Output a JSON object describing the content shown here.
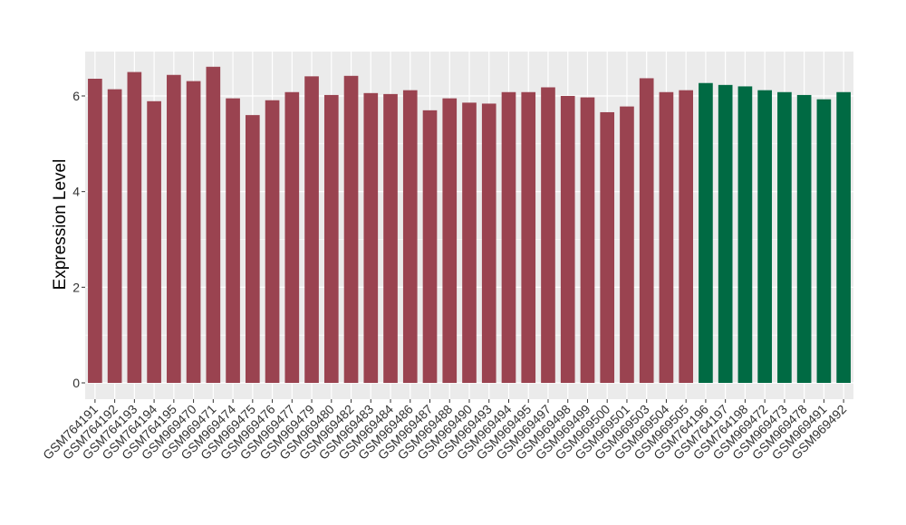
{
  "chart_data": {
    "type": "bar",
    "title": "",
    "xlabel": "",
    "ylabel": "Expression Level",
    "ylim": [
      0,
      6.9
    ],
    "yticks": [
      0,
      2,
      4,
      6
    ],
    "grid": true,
    "legend": "none",
    "panel_color": "#ebebeb",
    "grid_color": "#ffffff",
    "categories": [
      "GSM764191",
      "GSM764192",
      "GSM764193",
      "GSM764194",
      "GSM764195",
      "GSM969470",
      "GSM969471",
      "GSM969474",
      "GSM969475",
      "GSM969476",
      "GSM969477",
      "GSM969479",
      "GSM969480",
      "GSM969482",
      "GSM969483",
      "GSM969484",
      "GSM969486",
      "GSM969487",
      "GSM969488",
      "GSM969490",
      "GSM969493",
      "GSM969494",
      "GSM969495",
      "GSM969497",
      "GSM969498",
      "GSM969499",
      "GSM969500",
      "GSM969501",
      "GSM969503",
      "GSM969504",
      "GSM969505",
      "GSM764196",
      "GSM764197",
      "GSM764198",
      "GSM969472",
      "GSM969473",
      "GSM969478",
      "GSM969491",
      "GSM969492"
    ],
    "values": [
      6.36,
      6.14,
      6.5,
      5.89,
      6.44,
      6.31,
      6.61,
      5.95,
      5.6,
      5.91,
      6.08,
      6.41,
      6.02,
      6.42,
      6.06,
      6.04,
      6.12,
      5.7,
      5.95,
      5.86,
      5.84,
      6.08,
      6.08,
      6.18,
      6.0,
      5.97,
      5.66,
      5.78,
      6.37,
      6.08,
      6.12,
      6.27,
      6.23,
      6.2,
      6.12,
      6.08,
      6.02,
      5.93,
      6.08
    ],
    "bar_colors": [
      "#9a4350",
      "#9a4350",
      "#9a4350",
      "#9a4350",
      "#9a4350",
      "#9a4350",
      "#9a4350",
      "#9a4350",
      "#9a4350",
      "#9a4350",
      "#9a4350",
      "#9a4350",
      "#9a4350",
      "#9a4350",
      "#9a4350",
      "#9a4350",
      "#9a4350",
      "#9a4350",
      "#9a4350",
      "#9a4350",
      "#9a4350",
      "#9a4350",
      "#9a4350",
      "#9a4350",
      "#9a4350",
      "#9a4350",
      "#9a4350",
      "#9a4350",
      "#9a4350",
      "#9a4350",
      "#9a4350",
      "#006a43",
      "#006a43",
      "#006a43",
      "#006a43",
      "#006a43",
      "#006a43",
      "#006a43",
      "#006a43"
    ]
  }
}
